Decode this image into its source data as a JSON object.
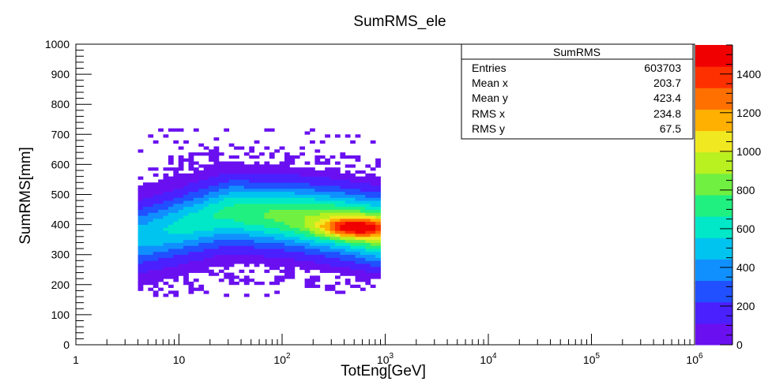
{
  "chart_data": {
    "type": "heatmap",
    "title": "SumRMS_ele",
    "xlabel": "TotEng[GeV]",
    "ylabel": "SumRMS[mm]",
    "x_scale": "log",
    "xlim": [
      1,
      1000000
    ],
    "ylim": [
      0,
      1000
    ],
    "x_ticks": [
      {
        "value": 1,
        "base": "1",
        "exp": ""
      },
      {
        "value": 10,
        "base": "10",
        "exp": ""
      },
      {
        "value": 100,
        "base": "10",
        "exp": "2"
      },
      {
        "value": 1000,
        "base": "10",
        "exp": "3"
      },
      {
        "value": 10000,
        "base": "10",
        "exp": "4"
      },
      {
        "value": 100000,
        "base": "10",
        "exp": "5"
      },
      {
        "value": 1000000,
        "base": "10",
        "exp": "6"
      }
    ],
    "y_ticks": [
      0,
      100,
      200,
      300,
      400,
      500,
      600,
      700,
      800,
      900,
      1000
    ],
    "color_scale": {
      "range": [
        0,
        1550
      ],
      "ticks": [
        0,
        200,
        400,
        600,
        800,
        1000,
        1200,
        1400
      ],
      "colors": [
        "#6a10f0",
        "#4a20ff",
        "#2050ff",
        "#1090ff",
        "#00c4f0",
        "#00e8c8",
        "#20f080",
        "#70f040",
        "#b8f020",
        "#f0e820",
        "#ffb000",
        "#ff7000",
        "#ff3000",
        "#f00000"
      ]
    },
    "distribution": {
      "x_range": [
        4,
        900
      ],
      "ridge": [
        {
          "x": 4,
          "y": 360
        },
        {
          "x": 10,
          "y": 395
        },
        {
          "x": 30,
          "y": 440
        },
        {
          "x": 100,
          "y": 430
        },
        {
          "x": 300,
          "y": 410
        },
        {
          "x": 800,
          "y": 385
        }
      ],
      "y_spread": 70,
      "peak_x": 500,
      "peak_y": 390
    },
    "stats_box": {
      "title": "SumRMS",
      "rows": [
        {
          "label": "Entries",
          "value": "603703"
        },
        {
          "label": "Mean x",
          "value": "203.7"
        },
        {
          "label": "Mean y",
          "value": "423.4"
        },
        {
          "label": "RMS x",
          "value": "234.8"
        },
        {
          "label": "RMS y",
          "value": "67.5"
        }
      ]
    },
    "grid": false,
    "legend": "top-right stats box"
  }
}
